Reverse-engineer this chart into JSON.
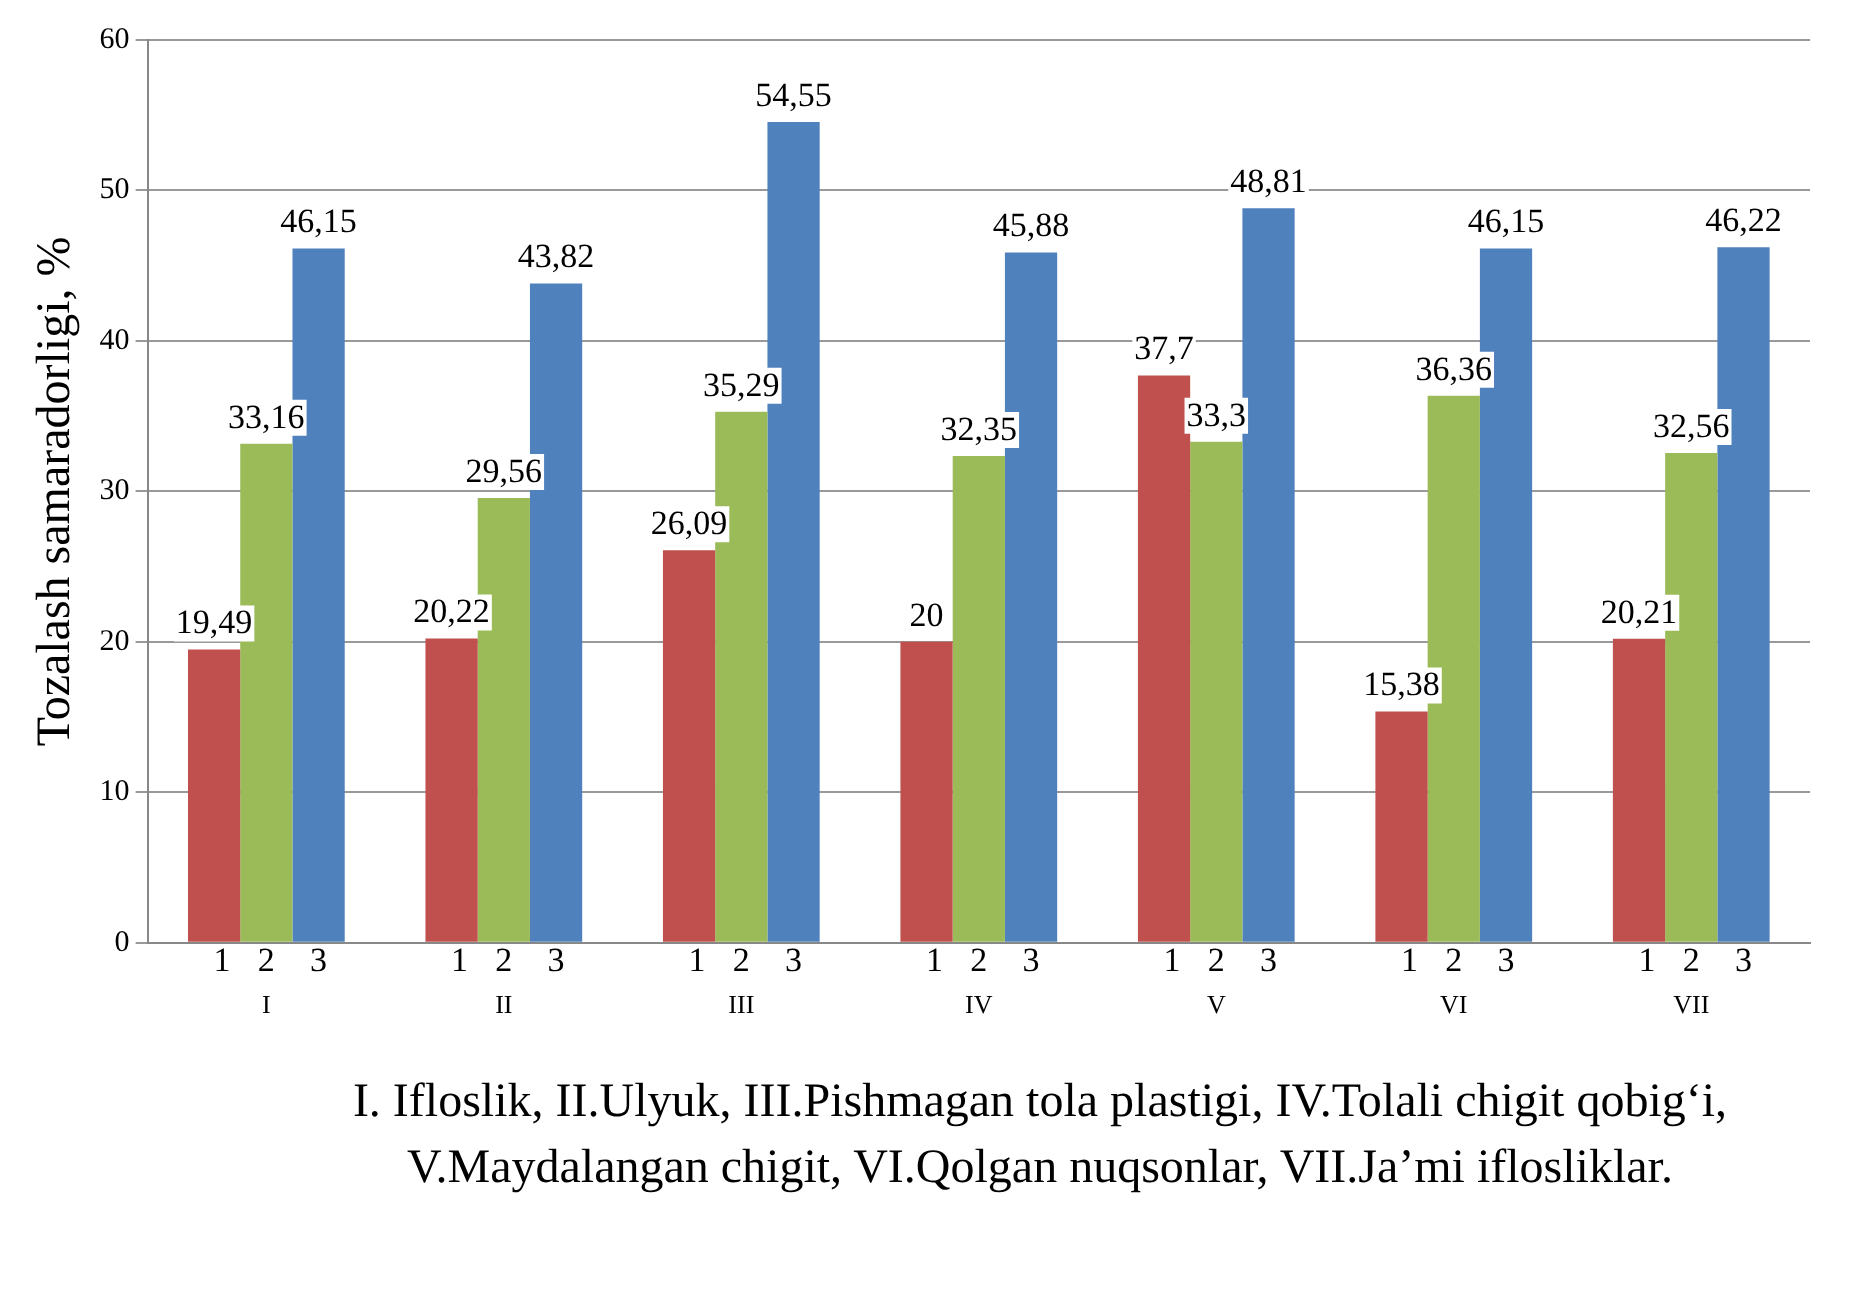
{
  "chart_data": {
    "type": "bar",
    "ylabel": "Tozalash samaradorligi, %",
    "categories": [
      "I",
      "II",
      "III",
      "IV",
      "V",
      "VI",
      "VII"
    ],
    "series": [
      {
        "name": "1",
        "color": "#c0504d",
        "values": [
          19.49,
          20.22,
          26.09,
          20,
          37.7,
          15.38,
          20.21
        ],
        "value_labels": [
          "19,49",
          "20,22",
          "26,09",
          "20",
          "37,7",
          "15,38",
          "20,21"
        ]
      },
      {
        "name": "2",
        "color": "#9bbb59",
        "values": [
          33.16,
          29.56,
          35.29,
          32.35,
          33.3,
          36.36,
          32.56
        ],
        "value_labels": [
          "33,16",
          "29,56",
          "35,29",
          "32,35",
          "33,3",
          "36,36",
          "32,56"
        ]
      },
      {
        "name": "3",
        "color": "#4f81bd",
        "values": [
          46.15,
          43.82,
          54.55,
          45.88,
          48.81,
          46.15,
          46.22
        ],
        "value_labels": [
          "46,15",
          "43,82",
          "54,55",
          "45,88",
          "48,81",
          "46,15",
          "46,22"
        ]
      }
    ],
    "ylim": [
      0,
      60
    ],
    "yticks": [
      0,
      10,
      20,
      30,
      40,
      50,
      60
    ],
    "grid": "y",
    "legend": false,
    "annotations": [
      "I. Ifloslik, II.Ulyuk, III.Pishmagan tola plastigi, IV.Tolali chigit qobig‘i, V.Maydalangan chigit, VI.Qolgan nuqsonlar, VII.Ja’mi iflosliklar."
    ]
  }
}
